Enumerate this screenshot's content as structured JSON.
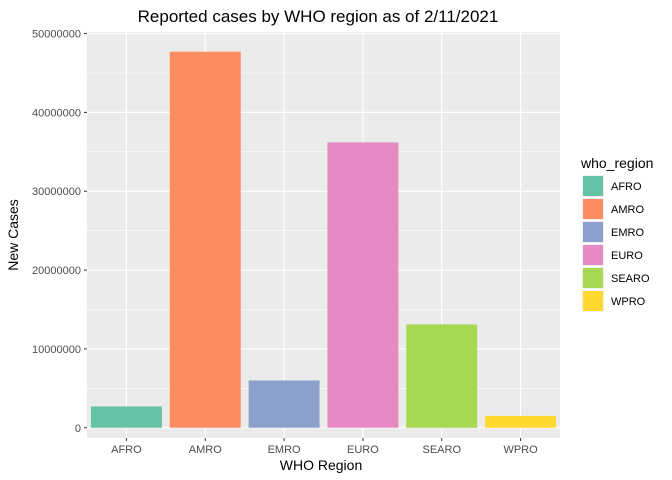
{
  "chart_data": {
    "type": "bar",
    "title": "Reported cases by WHO region as of 2/11/2021",
    "xlabel": "WHO Region",
    "ylabel": "New Cases",
    "categories": [
      "AFRO",
      "AMRO",
      "EMRO",
      "EURO",
      "SEARO",
      "WPRO"
    ],
    "values": [
      2700000,
      47700000,
      6000000,
      36200000,
      13100000,
      1500000
    ],
    "colors": [
      "#66C2A5",
      "#FC8D62",
      "#8DA0CB",
      "#E78AC3",
      "#A6D854",
      "#FFD92F"
    ],
    "ylim": [
      -1300000,
      50200000
    ],
    "yticks": [
      0,
      10000000,
      20000000,
      30000000,
      40000000,
      50000000
    ],
    "ytick_labels": [
      "0",
      "10000000",
      "20000000",
      "30000000",
      "40000000",
      "50000000"
    ],
    "grid": true,
    "background": "#EBEBEB",
    "legend": {
      "title": "who_region",
      "position": "right",
      "entries": [
        "AFRO",
        "AMRO",
        "EMRO",
        "EURO",
        "SEARO",
        "WPRO"
      ]
    }
  }
}
